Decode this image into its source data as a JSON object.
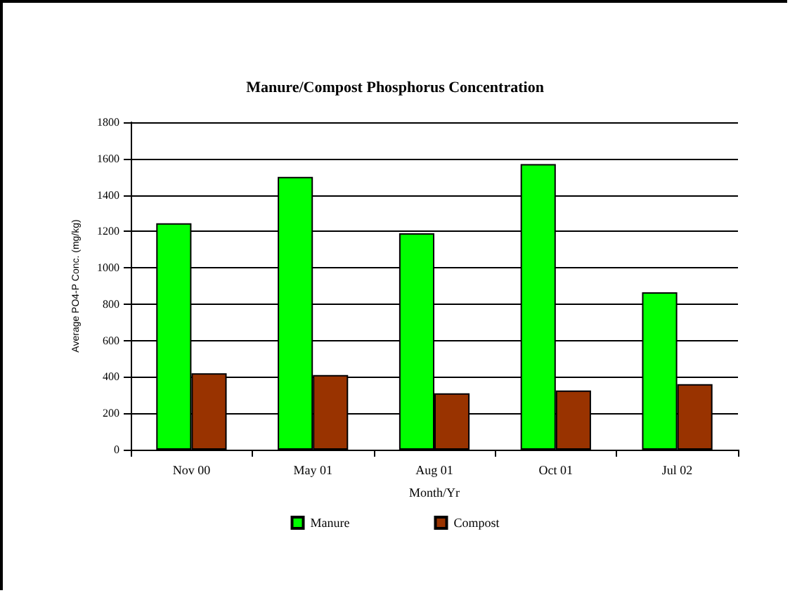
{
  "chart_data": {
    "type": "bar",
    "title": "Manure/Compost Phosphorus Concentration",
    "xlabel": "Month/Yr",
    "ylabel": "Average PO4-P Conc. (mg/kg)",
    "categories": [
      "Nov 00",
      "May 01",
      "Aug 01",
      "Oct 01",
      "Jul 02"
    ],
    "series": [
      {
        "name": "Manure",
        "color": "#00ff00",
        "values": [
          1245,
          1500,
          1190,
          1570,
          865
        ]
      },
      {
        "name": "Compost",
        "color": "#993300",
        "values": [
          420,
          410,
          310,
          325,
          360
        ]
      }
    ],
    "ylim": [
      0,
      1800
    ],
    "yticks": [
      0,
      200,
      400,
      600,
      800,
      1000,
      1200,
      1400,
      1600,
      1800
    ],
    "grid": "y",
    "legend": "bottom"
  }
}
